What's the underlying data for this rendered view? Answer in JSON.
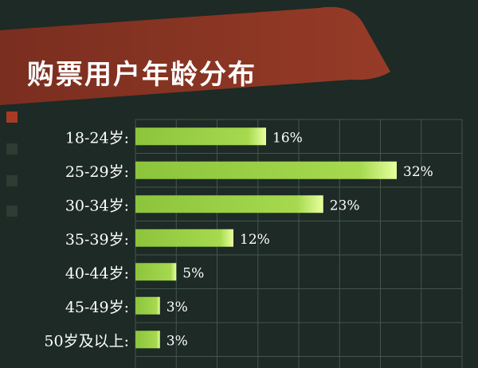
{
  "title": "购票用户年龄分布",
  "colors": {
    "background": "#1d2a25",
    "banner_red": "#8a3524",
    "grid": "#43564c",
    "bar_light": "#dcff8c",
    "bar": "#8cc43c",
    "label": "#ffffff",
    "square_red": "#a83a25",
    "square_dark": "#2c3c33"
  },
  "chart_data": {
    "type": "bar",
    "orientation": "horizontal",
    "title": "购票用户年龄分布",
    "categories": [
      "18-24岁:",
      "25-29岁:",
      "30-34岁:",
      "35-39岁:",
      "40-44岁:",
      "45-49岁:",
      "50岁及以上:"
    ],
    "values": [
      16,
      32,
      23,
      12,
      5,
      3,
      3
    ],
    "value_labels": [
      "16%",
      "32%",
      "23%",
      "12%",
      "5%",
      "3%",
      "3%"
    ],
    "unit": "%",
    "xlim": [
      0,
      40
    ],
    "grid": true,
    "legend": "none"
  }
}
